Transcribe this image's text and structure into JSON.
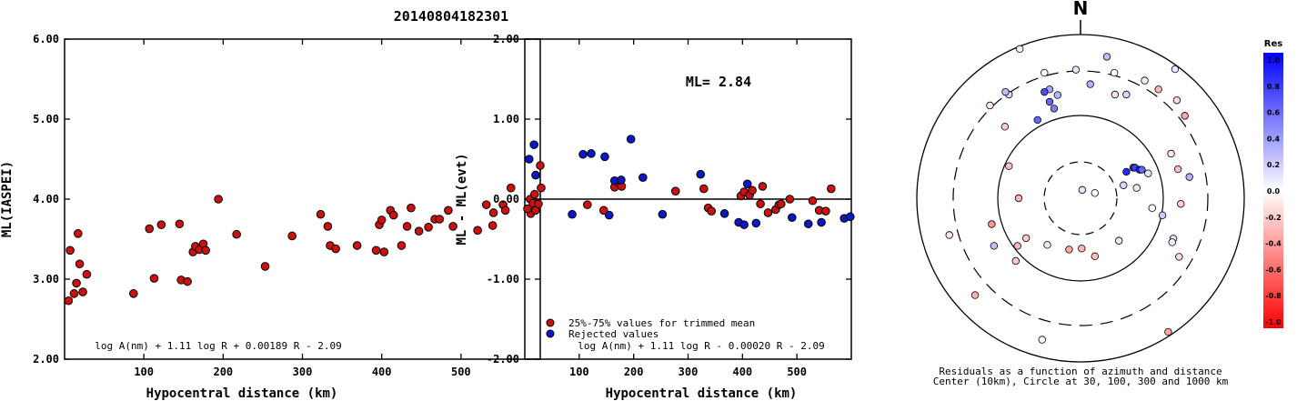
{
  "figure_title": "20140804182301",
  "colors": {
    "red_point": "#cc1111",
    "blue_point": "#0a18c8",
    "axis": "#000000"
  },
  "chart_data": [
    {
      "type": "scatter",
      "xlabel": "Hypocentral distance (km)",
      "ylabel": "ML(IASPEI)",
      "xlim": [
        0,
        600
      ],
      "ylim": [
        2.0,
        6.0
      ],
      "xticks": [
        "100",
        "200",
        "300",
        "400",
        "500"
      ],
      "yticks": [
        "2.00",
        "3.00",
        "4.00",
        "5.00",
        "6.00"
      ],
      "annotation": "log A(nm) + 1.11 log R + 0.00189 R - 2.09",
      "series": [
        {
          "color": "#cc1111",
          "points": [
            [
              5,
              2.73
            ],
            [
              7,
              3.36
            ],
            [
              12,
              2.82
            ],
            [
              15,
              2.95
            ],
            [
              17,
              3.57
            ],
            [
              19,
              3.19
            ],
            [
              23,
              2.84
            ],
            [
              28,
              3.06
            ],
            [
              87,
              2.82
            ],
            [
              107,
              3.63
            ],
            [
              113,
              3.01
            ],
            [
              122,
              3.68
            ],
            [
              145,
              3.69
            ],
            [
              147,
              2.99
            ],
            [
              155,
              2.97
            ],
            [
              162,
              3.34
            ],
            [
              165,
              3.41
            ],
            [
              170,
              3.37
            ],
            [
              175,
              3.44
            ],
            [
              178,
              3.36
            ],
            [
              194,
              4.0
            ],
            [
              217,
              3.56
            ],
            [
              253,
              3.16
            ],
            [
              287,
              3.54
            ],
            [
              323,
              3.81
            ],
            [
              332,
              3.66
            ],
            [
              335,
              3.42
            ],
            [
              342,
              3.38
            ],
            [
              369,
              3.42
            ],
            [
              393,
              3.36
            ],
            [
              397,
              3.68
            ],
            [
              400,
              3.74
            ],
            [
              403,
              3.34
            ],
            [
              411,
              3.86
            ],
            [
              415,
              3.8
            ],
            [
              425,
              3.42
            ],
            [
              432,
              3.66
            ],
            [
              437,
              3.89
            ],
            [
              447,
              3.6
            ],
            [
              459,
              3.65
            ],
            [
              467,
              3.75
            ],
            [
              473,
              3.75
            ],
            [
              484,
              3.86
            ],
            [
              490,
              3.66
            ],
            [
              521,
              3.61
            ],
            [
              532,
              3.93
            ],
            [
              540,
              3.67
            ],
            [
              541,
              3.83
            ],
            [
              553,
              3.93
            ],
            [
              556,
              3.86
            ],
            [
              563,
              4.14
            ],
            [
              588,
              3.82
            ],
            [
              594,
              3.86
            ],
            [
              600,
              4.42
            ]
          ]
        }
      ]
    },
    {
      "type": "scatter",
      "xlabel": "Hypocentral distance (km)",
      "ylabel": "ML - ML(evt)",
      "xlim": [
        0,
        600
      ],
      "ylim": [
        -2.0,
        2.0
      ],
      "xticks": [
        "100",
        "200",
        "300",
        "400",
        "500"
      ],
      "yticks": [
        "-2.00",
        "-1.00",
        "0.00",
        "1.00",
        "2.00"
      ],
      "reference_line": 0.0,
      "annotation": "log A(nm) + 1.11 log R - 0.00020 R - 2.09",
      "ml_label": "ML= 2.84",
      "legend": [
        "25%-75% values for trimmed mean",
        "Rejected values"
      ],
      "series": [
        {
          "name": "25%-75% values for trimmed mean",
          "color": "#cc1111",
          "points": [
            [
              5,
              -0.12
            ],
            [
              10,
              0.0
            ],
            [
              15,
              -0.05
            ],
            [
              18,
              0.06
            ],
            [
              25,
              -0.06
            ],
            [
              30,
              0.14
            ],
            [
              115,
              -0.07
            ],
            [
              145,
              -0.14
            ],
            [
              165,
              0.15
            ],
            [
              173,
              0.2
            ],
            [
              178,
              0.16
            ],
            [
              277,
              0.1
            ],
            [
              329,
              0.13
            ],
            [
              337,
              -0.11
            ],
            [
              343,
              -0.15
            ],
            [
              397,
              0.04
            ],
            [
              403,
              0.09
            ],
            [
              413,
              0.05
            ],
            [
              418,
              0.11
            ],
            [
              433,
              -0.06
            ],
            [
              437,
              0.16
            ],
            [
              447,
              -0.17
            ],
            [
              461,
              -0.13
            ],
            [
              467,
              -0.07
            ],
            [
              471,
              -0.06
            ],
            [
              487,
              0.0
            ],
            [
              529,
              -0.02
            ],
            [
              541,
              -0.14
            ],
            [
              553,
              -0.15
            ],
            [
              563,
              0.13
            ]
          ]
        },
        {
          "name": "Rejected values",
          "color": "#0a18c8",
          "points": [
            [
              8,
              0.5
            ],
            [
              17,
              0.68
            ],
            [
              20,
              0.3
            ],
            [
              87,
              -0.19
            ],
            [
              107,
              0.56
            ],
            [
              122,
              0.57
            ],
            [
              147,
              0.53
            ],
            [
              155,
              -0.2
            ],
            [
              165,
              0.23
            ],
            [
              177,
              0.24
            ],
            [
              195,
              0.75
            ],
            [
              217,
              0.27
            ],
            [
              253,
              -0.19
            ],
            [
              323,
              0.31
            ],
            [
              367,
              -0.18
            ],
            [
              393,
              -0.29
            ],
            [
              403,
              -0.32
            ],
            [
              409,
              0.19
            ],
            [
              425,
              -0.3
            ],
            [
              491,
              -0.23
            ],
            [
              521,
              -0.31
            ],
            [
              545,
              -0.29
            ],
            [
              587,
              -0.24
            ],
            [
              598,
              -0.22
            ]
          ]
        }
      ]
    },
    {
      "type": "polar",
      "north_label": "N",
      "caption_line1": "Residuals as a function of azimuth and distance",
      "caption_line2": "Center (10km), Circle at 30, 100, 300 and 1000 km",
      "rings": [
        {
          "radius_km": 30,
          "style": "dashed"
        },
        {
          "radius_km": 100,
          "style": "solid"
        },
        {
          "radius_km": 300,
          "style": "dashed"
        },
        {
          "radius_km": 1000,
          "style": "solid"
        }
      ],
      "points": [
        {
          "dx": 0.25,
          "dy": 0.1,
          "res": 0.0
        },
        {
          "dx": 0.03,
          "dy": 0.16,
          "res": 0.1
        },
        {
          "dx": 0.75,
          "dy": 0.25,
          "res": 0.15
        },
        {
          "dx": 0.8,
          "dy": 0.51,
          "res": 0.85
        },
        {
          "dx": 0.92,
          "dy": 0.59,
          "res": 0.8
        },
        {
          "dx": 0.95,
          "dy": 0.59,
          "res": 0.75
        },
        {
          "dx": 1.03,
          "dy": 0.55,
          "res": 0.9
        },
        {
          "dx": 1.07,
          "dy": 0.55,
          "res": 0.6
        },
        {
          "dx": 1.18,
          "dy": 0.48,
          "res": 0.1
        },
        {
          "dx": 0.98,
          "dy": 0.2,
          "res": -0.1
        },
        {
          "dx": 1.7,
          "dy": 0.56,
          "res": -0.25
        },
        {
          "dx": 1.75,
          "dy": -0.11,
          "res": -0.2
        },
        {
          "dx": 1.62,
          "dy": -0.78,
          "res": 0.1
        },
        {
          "dx": 1.72,
          "dy": -1.13,
          "res": -0.15
        },
        {
          "dx": 1.25,
          "dy": -0.19,
          "res": 0.0
        },
        {
          "dx": 1.43,
          "dy": -0.33,
          "res": 0.2
        },
        {
          "dx": 0.67,
          "dy": -0.82,
          "res": -0.1
        },
        {
          "dx": 0.25,
          "dy": -1.12,
          "res": -0.25
        },
        {
          "dx": 0.02,
          "dy": -0.97,
          "res": -0.3
        },
        {
          "dx": -0.2,
          "dy": -0.99,
          "res": -0.35
        },
        {
          "dx": -0.58,
          "dy": -0.9,
          "res": -0.1
        },
        {
          "dx": -0.95,
          "dy": -0.77,
          "res": -0.2
        },
        {
          "dx": -1.1,
          "dy": -0.92,
          "res": -0.3
        },
        {
          "dx": -1.55,
          "dy": -0.5,
          "res": -0.4
        },
        {
          "dx": -1.08,
          "dy": 0.0,
          "res": -0.3
        },
        {
          "dx": -1.25,
          "dy": 0.62,
          "res": -0.25
        },
        {
          "dx": -1.32,
          "dy": 1.38,
          "res": -0.2
        },
        {
          "dx": -0.75,
          "dy": 1.51,
          "res": 0.6
        },
        {
          "dx": -0.46,
          "dy": 1.73,
          "res": 0.5
        },
        {
          "dx": -0.54,
          "dy": 1.86,
          "res": 0.6
        },
        {
          "dx": -0.4,
          "dy": 1.99,
          "res": 0.3
        },
        {
          "dx": -0.54,
          "dy": 2.1,
          "res": 0.35
        },
        {
          "dx": -0.63,
          "dy": 2.05,
          "res": 0.7
        },
        {
          "dx": 0.6,
          "dy": 2.0,
          "res": -0.1
        },
        {
          "dx": 0.17,
          "dy": 2.2,
          "res": 0.3
        },
        {
          "dx": 0.8,
          "dy": 2.0,
          "res": 0.15
        },
        {
          "dx": 1.12,
          "dy": 2.27,
          "res": -0.05
        },
        {
          "dx": 1.68,
          "dy": 1.89,
          "res": -0.15
        },
        {
          "dx": 1.36,
          "dy": 2.1,
          "res": -0.3
        },
        {
          "dx": -1.25,
          "dy": 2.0,
          "res": 0.15
        },
        {
          "dx": -1.31,
          "dy": 2.05,
          "res": 0.25
        },
        {
          "dx": -0.63,
          "dy": 2.42,
          "res": 0.0
        },
        {
          "dx": -0.08,
          "dy": 2.48,
          "res": 0.1
        },
        {
          "dx": 0.46,
          "dy": 2.73,
          "res": 0.25
        },
        {
          "dx": 1.65,
          "dy": 2.49,
          "res": 0.1
        },
        {
          "dx": 1.6,
          "dy": -0.85,
          "res": 0.05
        },
        {
          "dx": 1.9,
          "dy": 0.41,
          "res": 0.3
        },
        {
          "dx": 1.58,
          "dy": 0.86,
          "res": -0.1
        },
        {
          "dx": 0.59,
          "dy": 2.42,
          "res": 0.0
        },
        {
          "dx": -1.06,
          "dy": 2.88,
          "res": 0.05
        },
        {
          "dx": 1.82,
          "dy": 1.59,
          "res": -0.35
        },
        {
          "dx": -1.84,
          "dy": -1.87,
          "res": -0.3
        },
        {
          "dx": -1.58,
          "dy": 1.79,
          "res": -0.1
        },
        {
          "dx": 1.53,
          "dy": -2.58,
          "res": -0.35
        },
        {
          "dx": -0.67,
          "dy": -2.73,
          "res": 0.0
        },
        {
          "dx": -1.51,
          "dy": -0.92,
          "res": 0.25
        },
        {
          "dx": -1.13,
          "dy": -1.21,
          "res": -0.2
        },
        {
          "dx": -2.29,
          "dy": -0.71,
          "res": -0.1
        }
      ]
    },
    {
      "type": "colorbar",
      "title": "Res",
      "ticks": [
        "1.0",
        "0.8",
        "0.6",
        "0.4",
        "0.2",
        "0.0",
        "-0.2",
        "-0.4",
        "-0.6",
        "-0.8",
        "-1.0"
      ]
    }
  ]
}
